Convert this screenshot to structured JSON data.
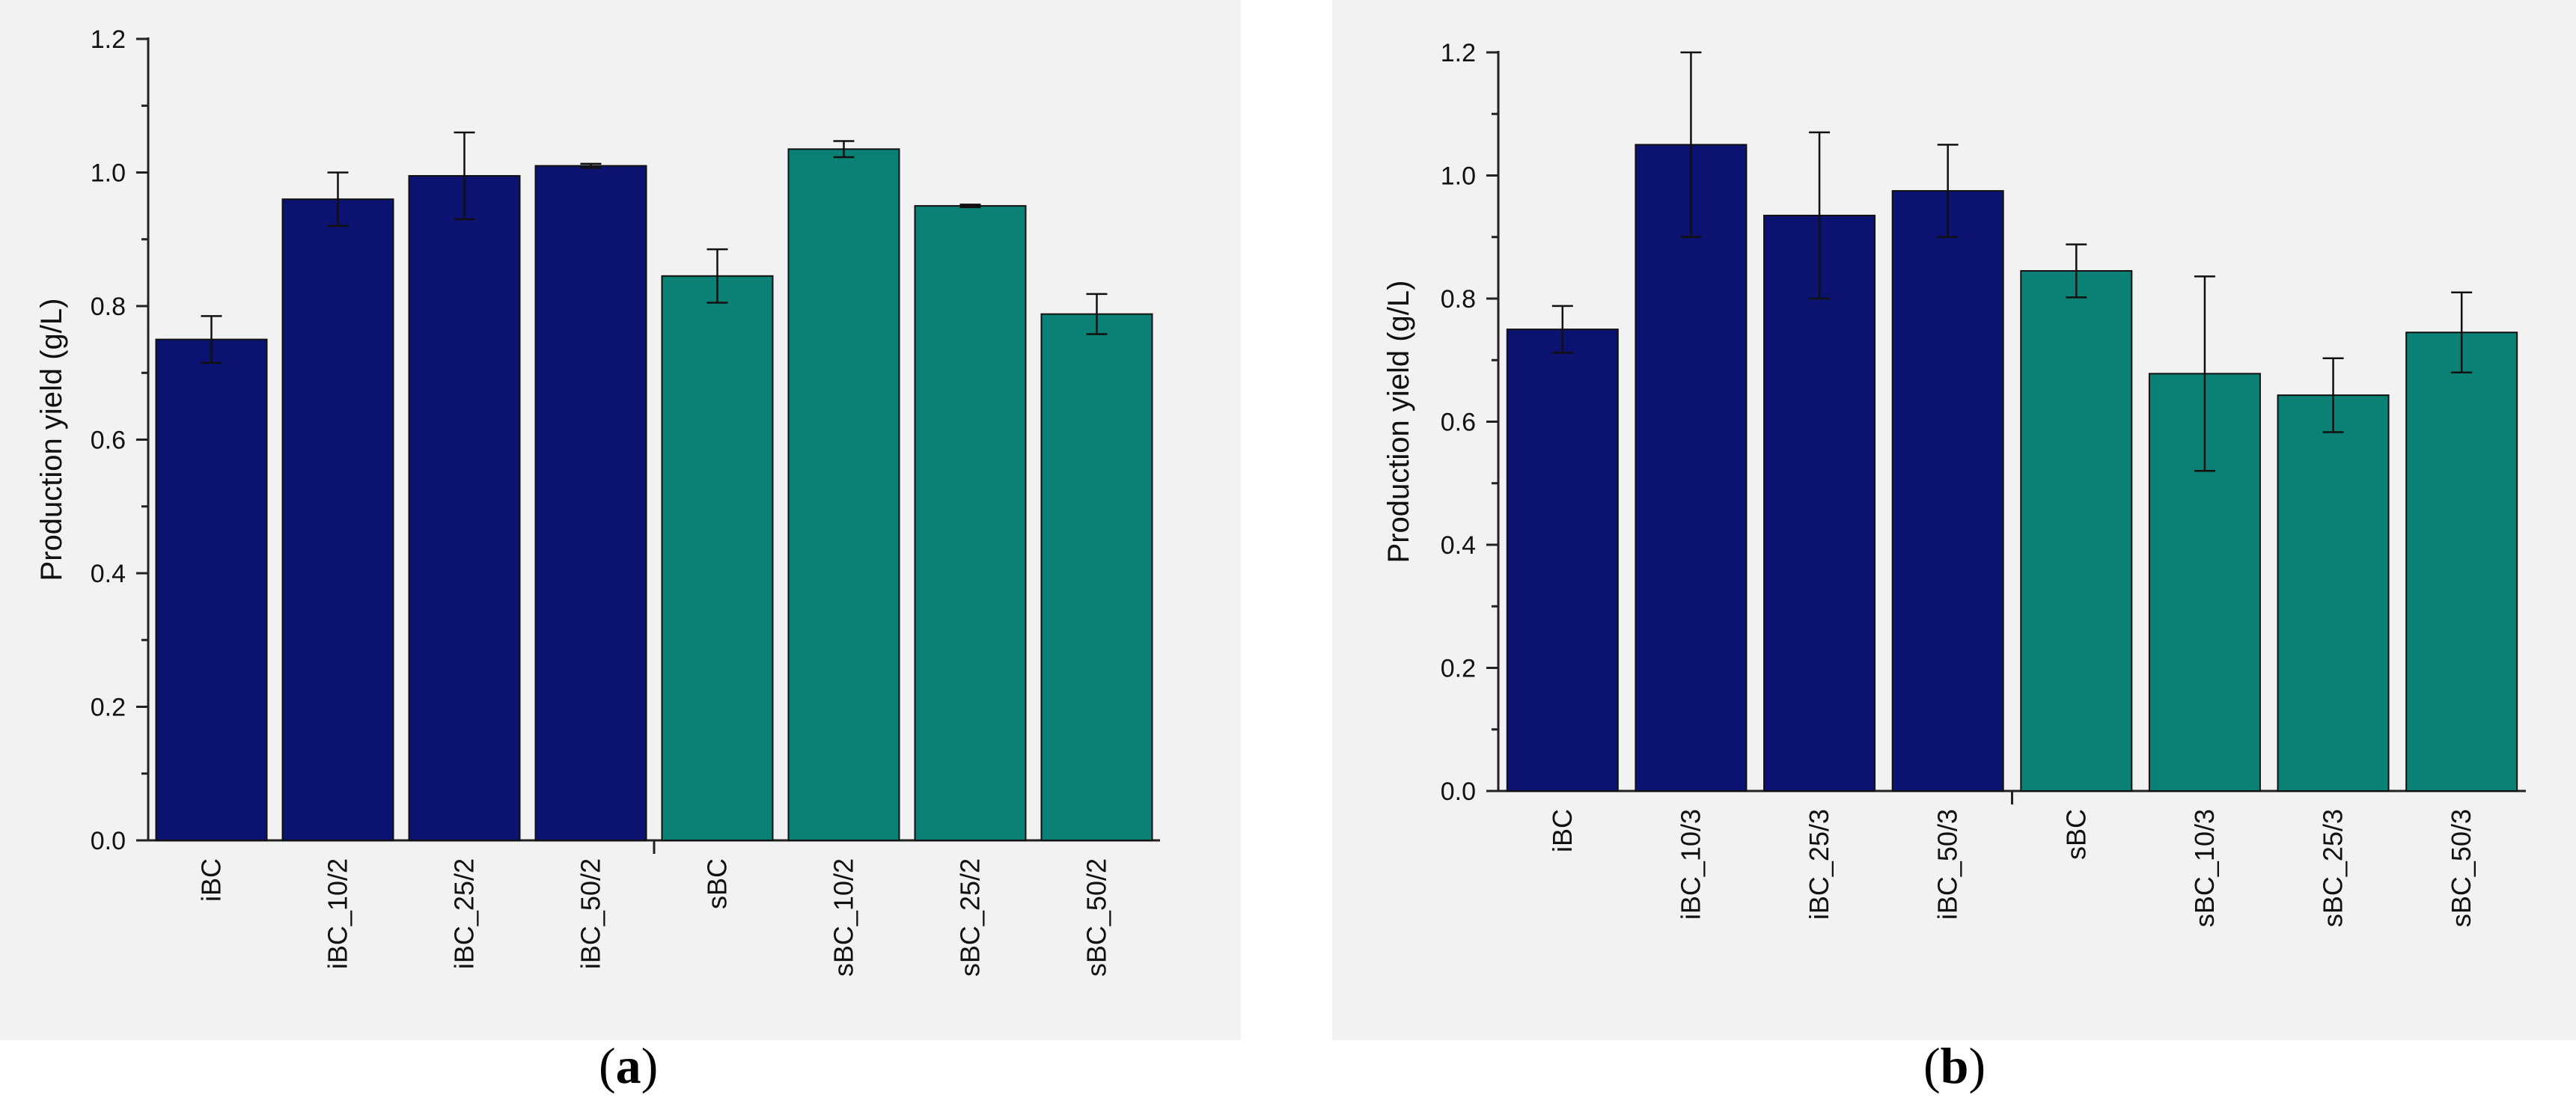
{
  "colors": {
    "ibc": "#0b1270",
    "sbc": "#0b8176",
    "axis": "#222222",
    "panel_background": "#f2f2f2"
  },
  "chart_data": [
    {
      "id": "a",
      "type": "bar",
      "caption_label": "a",
      "ylabel": "Production yield (g/L)",
      "ylim": [
        0,
        1.2
      ],
      "yticks": [
        "0.0",
        "0.2",
        "0.4",
        "0.6",
        "0.8",
        "1.0",
        "1.2"
      ],
      "categories": [
        "iBC",
        "iBC_10/2",
        "iBC_25/2",
        "iBC_50/2",
        "sBC",
        "sBC_10/2",
        "sBC_25/2",
        "sBC_50/2"
      ],
      "values": [
        0.75,
        0.96,
        0.995,
        1.01,
        0.845,
        1.035,
        0.95,
        0.788
      ],
      "errors": [
        0.035,
        0.04,
        0.065,
        0.003,
        0.04,
        0.012,
        0.002,
        0.03
      ],
      "groups": [
        "iBC",
        "iBC",
        "iBC",
        "iBC",
        "sBC",
        "sBC",
        "sBC",
        "sBC"
      ]
    },
    {
      "id": "b",
      "type": "bar",
      "caption_label": "b",
      "ylabel": "Production yield (g/L)",
      "ylim": [
        0,
        1.2
      ],
      "yticks": [
        "0.0",
        "0.2",
        "0.4",
        "0.6",
        "0.8",
        "1.0",
        "1.2"
      ],
      "categories": [
        "iBC",
        "iBC_10/3",
        "iBC_25/3",
        "iBC_50/3",
        "sBC",
        "sBC_10/3",
        "sBC_25/3",
        "sBC_50/3"
      ],
      "values": [
        0.75,
        1.05,
        0.935,
        0.975,
        0.845,
        0.678,
        0.643,
        0.745
      ],
      "errors": [
        0.038,
        0.15,
        0.135,
        0.075,
        0.043,
        0.158,
        0.06,
        0.065
      ],
      "groups": [
        "iBC",
        "iBC",
        "iBC",
        "iBC",
        "sBC",
        "sBC",
        "sBC",
        "sBC"
      ]
    }
  ]
}
